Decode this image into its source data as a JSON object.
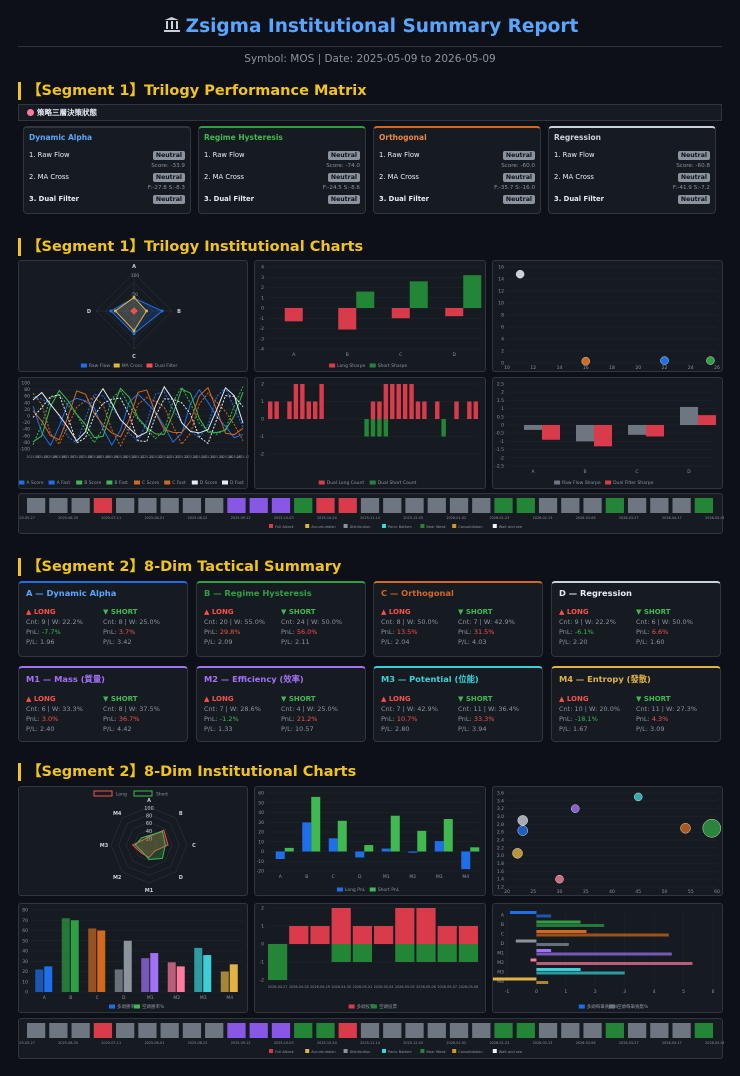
{
  "header": {
    "title": "Zsigma Institutional Summary Report",
    "subtitle": "Symbol: MOS | Date: 2025-05-09 to 2026-05-09"
  },
  "segments": {
    "s1_matrix": "【Segment 1】Trilogy Performance Matrix",
    "s1_charts": "【Segment 1】Trilogy Institutional Charts",
    "s2_summary": "【Segment 2】8-Dim Tactical Summary",
    "s2_charts": "【Segment 2】8-Dim Institutional Charts"
  },
  "matrix_bar": "策略三層決策狀態",
  "matrix": [
    {
      "name": "Dynamic Alpha",
      "color": "#1f6feb",
      "r1": "1. Raw Flow",
      "r1v": "Neutral",
      "s1": "Score: -33.9",
      "r2": "2. MA Cross",
      "r2v": "Neutral",
      "s2": "F:-27.8 S:-8.3",
      "r3": "3. Dual Filter",
      "r3v": "Neutral"
    },
    {
      "name": "Regime Hysteresis",
      "color": "#2ea043",
      "r1": "1. Raw Flow",
      "r1v": "Neutral",
      "s1": "Score: -74.0",
      "r2": "2. MA Cross",
      "r2v": "Neutral",
      "s2": "F:-24.5 S:-8.6",
      "r3": "3. Dual Filter",
      "r3v": "Neutral"
    },
    {
      "name": "Orthogonal",
      "color": "#d2691e",
      "r1": "1. Raw Flow",
      "r1v": "Neutral",
      "s1": "Score: -60.0",
      "r2": "2. MA Cross",
      "r2v": "Neutral",
      "s2": "F:-35.7 S:-16.0",
      "r3": "3. Dual Filter",
      "r3v": "Neutral"
    },
    {
      "name": "Regression",
      "color": "#c9d1d9",
      "r1": "1. Raw Flow",
      "r1v": "Neutral",
      "s1": "Score: -60.8",
      "r2": "2. MA Cross",
      "r2v": "Neutral",
      "s2": "F:-41.9 S:-7.2",
      "r3": "3. Dual Filter",
      "r3v": "Neutral"
    }
  ],
  "colors": {
    "A": "#1f6feb",
    "B": "#2ea043",
    "C": "#d2691e",
    "D": "#c9d1d9",
    "M1": "#a371f7",
    "M2": "#a371f7",
    "M3": "#39d0d8",
    "M4": "#e3b341",
    "long": "#f85149",
    "short": "#3fb950"
  },
  "tactical": [
    {
      "name": "A — Dynamic Alpha",
      "color": "#1f6feb",
      "long": {
        "cnt": "Cnt: 9 | W: 22.2%",
        "pnl": "-7.7%",
        "pf": "P/L: 1.96"
      },
      "short": {
        "cnt": "Cnt: 8 | W: 25.0%",
        "pnl": "3.7%",
        "pf": "P/L: 3.42"
      }
    },
    {
      "name": "B — Regime Hysteresis",
      "color": "#2ea043",
      "long": {
        "cnt": "Cnt: 20 | W: 55.0%",
        "pnl": "29.8%",
        "pf": "P/L: 2.09"
      },
      "short": {
        "cnt": "Cnt: 24 | W: 50.0%",
        "pnl": "56.0%",
        "pf": "P/L: 2.11"
      }
    },
    {
      "name": "C — Orthogonal",
      "color": "#d2691e",
      "long": {
        "cnt": "Cnt: 8 | W: 50.0%",
        "pnl": "13.5%",
        "pf": "P/L: 2.04"
      },
      "short": {
        "cnt": "Cnt: 7 | W: 42.9%",
        "pnl": "31.5%",
        "pf": "P/L: 4.03"
      }
    },
    {
      "name": "D — Regression",
      "color": "#c9d1d9",
      "long": {
        "cnt": "Cnt: 9 | W: 22.2%",
        "pnl": "-6.1%",
        "pf": "P/L: 2.20"
      },
      "short": {
        "cnt": "Cnt: 6 | W: 50.0%",
        "pnl": "6.6%",
        "pf": "P/L: 1.60"
      }
    },
    {
      "name": "M1 — Mass (質量)",
      "color": "#a371f7",
      "long": {
        "cnt": "Cnt: 6 | W: 33.3%",
        "pnl": "3.0%",
        "pf": "P/L: 2.40"
      },
      "short": {
        "cnt": "Cnt: 8 | W: 37.5%",
        "pnl": "36.7%",
        "pf": "P/L: 4.42"
      }
    },
    {
      "name": "M2 — Efficiency (效率)",
      "color": "#a371f7",
      "long": {
        "cnt": "Cnt: 7 | W: 28.6%",
        "pnl": "-1.2%",
        "pf": "P/L: 1.33"
      },
      "short": {
        "cnt": "Cnt: 4 | W: 25.0%",
        "pnl": "21.2%",
        "pf": "P/L: 10.57"
      }
    },
    {
      "name": "M3 — Potential (位能)",
      "color": "#39d0d8",
      "long": {
        "cnt": "Cnt: 7 | W: 42.9%",
        "pnl": "10.7%",
        "pf": "P/L: 2.80"
      },
      "short": {
        "cnt": "Cnt: 11 | W: 36.4%",
        "pnl": "33.3%",
        "pf": "P/L: 3.94"
      }
    },
    {
      "name": "M4 — Entropy (發散)",
      "color": "#e3b341",
      "long": {
        "cnt": "Cnt: 10 | W: 20.0%",
        "pnl": "-18.1%",
        "pf": "P/L: 1.67"
      },
      "short": {
        "cnt": "Cnt: 11 | W: 27.3%",
        "pnl": "4.3%",
        "pf": "P/L: 3.09"
      }
    }
  ],
  "labels": {
    "long": "▲ LONG",
    "short": "▼ SHORT",
    "pnl": "PnL: "
  },
  "chart_data": [
    {
      "type": "radar",
      "axes": [
        "A",
        "B",
        "C",
        "D"
      ],
      "ticks": [
        "100",
        "50"
      ],
      "series": [
        {
          "name": "Raw Flow",
          "color": "#1f6feb",
          "values": [
            34,
            74,
            60,
            61
          ]
        },
        {
          "name": "MA Cross",
          "color": "#e3b341",
          "values": [
            36,
            33,
            52,
            49
          ]
        },
        {
          "name": "Dual Filter",
          "color": "#f85149",
          "values": [
            5,
            5,
            5,
            5
          ]
        }
      ]
    },
    {
      "type": "bar",
      "categories": [
        "A",
        "B",
        "C",
        "D"
      ],
      "ylim": [
        -4,
        4
      ],
      "yticks": [
        "4",
        "3",
        "2",
        "1",
        "0",
        "-1",
        "-2",
        "-3",
        "-4"
      ],
      "series": [
        {
          "name": "Long Sharpe",
          "color": "#da3b4a",
          "values": [
            -1.3,
            -2.1,
            -1.0,
            -0.8
          ]
        },
        {
          "name": "Short Sharpe",
          "color": "#238636",
          "values": [
            0,
            1.6,
            2.6,
            3.2
          ]
        }
      ]
    },
    {
      "type": "scatter",
      "xlim": [
        10,
        26
      ],
      "xticks": [
        "10",
        "12",
        "14",
        "16",
        "18",
        "20",
        "22",
        "24",
        "26"
      ],
      "ylim": [
        0,
        16
      ],
      "yticks": [
        "16",
        "14",
        "12",
        "10",
        "8",
        "6",
        "4",
        "2",
        "0"
      ],
      "points": [
        {
          "x": 11,
          "y": 14.8,
          "color": "#c9d1d9"
        },
        {
          "x": 16,
          "y": 0.3,
          "color": "#d2691e"
        },
        {
          "x": 22,
          "y": 0.4,
          "color": "#1f6feb"
        },
        {
          "x": 25.5,
          "y": 0.4,
          "color": "#2ea043"
        }
      ]
    },
    {
      "type": "line",
      "ylim": [
        -100,
        100
      ],
      "yticks": [
        "100",
        "80",
        "60",
        "40",
        "20",
        "0",
        "-20",
        "-40",
        "-60",
        "-80",
        "-100"
      ],
      "series": [
        {
          "name": "A Score",
          "color": "#1f6feb"
        },
        {
          "name": "A Fast",
          "color": "#1f6feb"
        },
        {
          "name": "B Score",
          "color": "#3fb950"
        },
        {
          "name": "B Fast",
          "color": "#3fb950"
        },
        {
          "name": "C Score",
          "color": "#d2691e"
        },
        {
          "name": "C Fast",
          "color": "#d2691e"
        },
        {
          "name": "D Score",
          "color": "#e6edf3"
        },
        {
          "name": "D Fast",
          "color": "#e6edf3"
        }
      ]
    },
    {
      "type": "bar",
      "ylim": [
        -2,
        2
      ],
      "yticks": [
        "2",
        "1",
        "0",
        "-1",
        "-2"
      ],
      "series": [
        {
          "name": "Dual Long Count",
          "color": "#da3b4a",
          "values": [
            1,
            1,
            0,
            1,
            2,
            2,
            1,
            1,
            2,
            0,
            0,
            0,
            0,
            0,
            0,
            0,
            1,
            1,
            2,
            2,
            2,
            2,
            2,
            1,
            1,
            0,
            1,
            0,
            0,
            1,
            0,
            1,
            1
          ]
        },
        {
          "name": "Dual Short Count",
          "color": "#238636",
          "values": [
            0,
            0,
            0,
            0,
            0,
            0,
            0,
            0,
            0,
            0,
            0,
            0,
            0,
            0,
            0,
            -1,
            -1,
            -1,
            -1,
            0,
            0,
            0,
            0,
            0,
            0,
            0,
            0,
            -1,
            0,
            0,
            0,
            0,
            0
          ]
        }
      ]
    },
    {
      "type": "bar",
      "categories": [
        "A",
        "B",
        "C",
        "D"
      ],
      "ylim": [
        -2.5,
        2.5
      ],
      "yticks": [
        "2.5",
        "2",
        "1.5",
        "1",
        "0.5",
        "0",
        "-0.5",
        "-1",
        "-1.5",
        "-2",
        "-2.5"
      ],
      "series": [
        {
          "name": "Raw Flow Sharpe",
          "color": "#6e7681",
          "values": [
            -0.3,
            -1.0,
            -0.6,
            1.1
          ]
        },
        {
          "name": "Dual Filter Sharpe",
          "color": "#da3b4a",
          "values": [
            -0.9,
            -1.3,
            -0.7,
            0.6
          ]
        }
      ]
    },
    {
      "type": "heatmap",
      "dates": [
        "2025-05-27",
        "2025-06-20",
        "2025-07-11",
        "2025-08-01",
        "2025-08-22",
        "2025-09-12",
        "2025-10-03",
        "2025-10-24",
        "2025-11-14",
        "2025-12-05",
        "2026-01-02",
        "2026-01-23",
        "2026-02-13",
        "2026-03-06",
        "2026-03-27",
        "2026-04-17",
        "2026-05-08"
      ],
      "states": [
        "gray",
        "gray",
        "gray",
        "red",
        "gray",
        "gray",
        "gray",
        "gray",
        "gray",
        "purple",
        "purple",
        "purple",
        "green",
        "red",
        "red",
        "gray",
        "gray",
        "gray",
        "gray",
        "gray",
        "gray",
        "green",
        "green",
        "gray",
        "gray",
        "gray",
        "green",
        "gray",
        "gray",
        "gray",
        "green"
      ],
      "legend": [
        "Full Attack",
        "Accumulation",
        "Distribution",
        "Panic Bottom",
        "Bear Weak",
        "Consolidation",
        "Wait and see"
      ]
    },
    {
      "type": "radar",
      "axes": [
        "A",
        "B",
        "C",
        "D",
        "M1",
        "M2",
        "M3",
        "M4"
      ],
      "ticks": [
        "100",
        "80",
        "60",
        "40",
        "20"
      ],
      "series": [
        {
          "name": "Long",
          "color": "#f85149",
          "values": [
            22,
            55,
            50,
            22,
            33,
            29,
            43,
            20
          ]
        },
        {
          "name": "Short",
          "color": "#3fb950",
          "values": [
            25,
            50,
            43,
            50,
            38,
            25,
            36,
            27
          ]
        }
      ]
    },
    {
      "type": "bar",
      "categories": [
        "A",
        "B",
        "C",
        "D",
        "M1",
        "M2",
        "M3",
        "M4"
      ],
      "ylim": [
        -20,
        60
      ],
      "yticks": [
        "60",
        "50",
        "40",
        "30",
        "20",
        "10",
        "0",
        "-10",
        "-20"
      ],
      "series": [
        {
          "name": "Long PnL",
          "color": "#1f6feb",
          "values": [
            -7.7,
            29.8,
            13.5,
            -6.1,
            3.0,
            -1.2,
            10.7,
            -18.1
          ]
        },
        {
          "name": "Short PnL",
          "color": "#3fb950",
          "values": [
            3.7,
            56.0,
            31.5,
            6.6,
            36.7,
            21.2,
            33.3,
            4.3
          ]
        }
      ]
    },
    {
      "type": "scatter",
      "xlim": [
        20,
        60
      ],
      "xticks": [
        "20",
        "25",
        "30",
        "35",
        "40",
        "45",
        "50",
        "55",
        "60"
      ],
      "ylim": [
        1.2,
        3.6
      ],
      "yticks": [
        "3.6",
        "3.4",
        "3.2",
        "3.0",
        "2.8",
        "2.6",
        "2.4",
        "2.2",
        "2.0",
        "1.8",
        "1.6",
        "1.4",
        "1.2"
      ],
      "points": [
        {
          "x": 22,
          "y": 2.06,
          "r": 5,
          "color": "#e3b341"
        },
        {
          "x": 23,
          "y": 2.64,
          "r": 5,
          "color": "#1f6feb"
        },
        {
          "x": 23,
          "y": 2.9,
          "r": 5,
          "color": "#c9d1d9"
        },
        {
          "x": 30,
          "y": 1.4,
          "r": 4,
          "color": "#ff7b9c"
        },
        {
          "x": 33,
          "y": 3.2,
          "r": 4,
          "color": "#a371f7"
        },
        {
          "x": 45,
          "y": 3.5,
          "r": 4,
          "color": "#39d0d8"
        },
        {
          "x": 54,
          "y": 2.7,
          "r": 5,
          "color": "#d2691e"
        },
        {
          "x": 59,
          "y": 2.7,
          "r": 9,
          "color": "#2ea043"
        }
      ]
    },
    {
      "type": "bar",
      "categories": [
        "A",
        "B",
        "C",
        "D",
        "M1",
        "M2",
        "M3",
        "M4"
      ],
      "ylim": [
        0,
        80
      ],
      "yticks": [
        "80",
        "70",
        "60",
        "50",
        "40",
        "30",
        "20",
        "10",
        "0"
      ],
      "series": [
        {
          "name": "多頭勝率%",
          "color": "#1f6feb"
        },
        {
          "name": "空頭勝率%",
          "color": "#3fb950"
        }
      ]
    },
    {
      "type": "bar",
      "ylim": [
        -2,
        2
      ],
      "yticks": [
        "2",
        "1",
        "0",
        "-1",
        "-2"
      ],
      "dates": [
        "2026-04-27",
        "2026-04-28",
        "2026-04-29",
        "2026-04-30",
        "2026-05-01",
        "2026-05-04",
        "2026-05-05",
        "2026-05-06",
        "2026-05-07",
        "2026-05-08"
      ],
      "series": [
        {
          "name": "多頭投票",
          "color": "#da3b4a",
          "values": [
            0,
            1,
            1,
            2,
            1,
            1,
            2,
            2,
            1,
            1
          ]
        },
        {
          "name": "空頭投票",
          "color": "#238636",
          "values": [
            -2,
            0,
            0,
            -1,
            -1,
            0,
            -1,
            -1,
            -1,
            -1
          ]
        }
      ]
    },
    {
      "type": "bar",
      "orientation": "horizontal",
      "categories": [
        "A",
        "B",
        "C",
        "D",
        "M1",
        "M2",
        "M3",
        "M4"
      ],
      "xticks": [
        "-1",
        "0",
        "1",
        "2",
        "3",
        "4",
        "5",
        "6"
      ],
      "series": [
        {
          "name": "多頭每筆貢獻%",
          "color": "#1f6feb",
          "values": [
            -0.9,
            1.5,
            1.7,
            -0.7,
            0.5,
            -0.2,
            1.5,
            -1.8
          ]
        },
        {
          "name": "空頭每筆貢獻%",
          "color": "#6e7681",
          "values": [
            0.5,
            2.3,
            4.5,
            1.1,
            4.6,
            5.3,
            3.0,
            0.4
          ]
        }
      ]
    },
    {
      "type": "heatmap",
      "dates": [
        "2025-05-27",
        "2025-06-20",
        "2025-07-11",
        "2025-08-01",
        "2025-08-22",
        "2025-09-12",
        "2025-10-03",
        "2025-10-24",
        "2025-11-14",
        "2025-12-05",
        "2026-01-02",
        "2026-01-23",
        "2026-02-13",
        "2026-03-06",
        "2026-03-27",
        "2026-04-17",
        "2026-05-08"
      ],
      "legend": [
        "Full Attack",
        "Accumulation",
        "Distribution",
        "Panic Bottom",
        "Bear Weak",
        "Consolidation",
        "Wait and see"
      ]
    }
  ]
}
